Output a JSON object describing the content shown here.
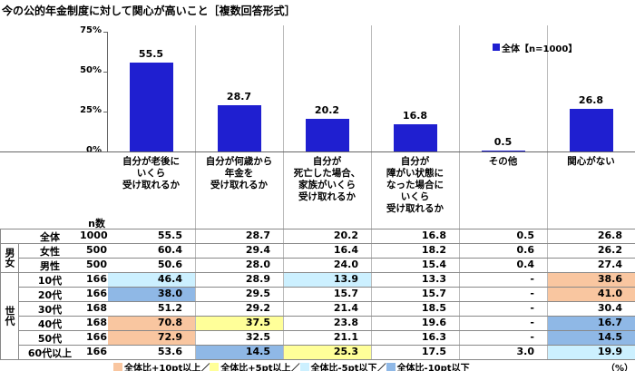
{
  "chart_data": {
    "type": "bar",
    "title": "今の公的年金制度に対して関心が高いこと［複数回答形式］",
    "categories": [
      "自分が老後に\nいくら\n受け取れるか",
      "自分が何歳から\n年金を\n受け取れるか",
      "自分が\n死亡した場合、\n家族がいくら\n受け取れるか",
      "自分が\n障がい状態に\nなった場合に\nいくら\n受け取れるか",
      "その他",
      "関心がない"
    ],
    "series": [
      {
        "name": "全体【n=1000】",
        "color": "#1f1fd0",
        "values": [
          55.5,
          28.7,
          20.2,
          16.8,
          0.5,
          26.8
        ]
      }
    ],
    "ylim": [
      0,
      75
    ],
    "yticks": [
      {
        "value": 0,
        "label": "0%"
      },
      {
        "value": 25,
        "label": "25%"
      },
      {
        "value": 50,
        "label": "50%"
      },
      {
        "value": 75,
        "label": "75%"
      }
    ],
    "legend": "upper right"
  },
  "table": {
    "n_header": "n数",
    "total": {
      "label": "全体",
      "n": 1000,
      "values": [
        "55.5",
        "28.7",
        "20.2",
        "16.8",
        "0.5",
        "26.8"
      ]
    },
    "groups": [
      {
        "label": "男女",
        "rows": [
          {
            "label": "女性",
            "n": 500,
            "values": [
              "60.4",
              "29.4",
              "16.4",
              "18.2",
              "0.6",
              "26.2"
            ]
          },
          {
            "label": "男性",
            "n": 500,
            "values": [
              "50.6",
              "28.0",
              "24.0",
              "15.4",
              "0.4",
              "27.4"
            ]
          }
        ]
      },
      {
        "label": "世代",
        "rows": [
          {
            "label": "10代",
            "n": 166,
            "values": [
              "46.4",
              "28.9",
              "13.9",
              "13.3",
              "-",
              "38.6"
            ],
            "highlight": [
              2,
              null,
              2,
              null,
              null,
              0
            ]
          },
          {
            "label": "20代",
            "n": 166,
            "values": [
              "38.0",
              "29.5",
              "15.7",
              "15.7",
              "-",
              "41.0"
            ],
            "highlight": [
              3,
              null,
              null,
              null,
              null,
              0
            ]
          },
          {
            "label": "30代",
            "n": 168,
            "values": [
              "51.2",
              "29.2",
              "21.4",
              "18.5",
              "-",
              "30.4"
            ]
          },
          {
            "label": "40代",
            "n": 168,
            "values": [
              "70.8",
              "37.5",
              "23.8",
              "19.6",
              "-",
              "16.7"
            ],
            "highlight": [
              0,
              1,
              null,
              null,
              null,
              3
            ]
          },
          {
            "label": "50代",
            "n": 166,
            "values": [
              "72.9",
              "32.5",
              "21.1",
              "16.3",
              "-",
              "14.5"
            ],
            "highlight": [
              0,
              null,
              null,
              null,
              null,
              3
            ]
          },
          {
            "label": "60代以上",
            "n": 166,
            "values": [
              "53.6",
              "14.5",
              "25.3",
              "17.5",
              "3.0",
              "19.9"
            ],
            "highlight": [
              null,
              3,
              1,
              null,
              null,
              2
            ]
          }
        ]
      }
    ],
    "key": [
      {
        "label": "全体比+10pt以上／",
        "color": "#f9c6a0"
      },
      {
        "label": "全体比+5pt以上／",
        "color": "#ffff99"
      },
      {
        "label": "全体比-5pt以下／",
        "color": "#ccf0ff"
      },
      {
        "label": "全体比-10pt以下",
        "color": "#8fb8e6"
      }
    ],
    "unit": "（%）"
  }
}
